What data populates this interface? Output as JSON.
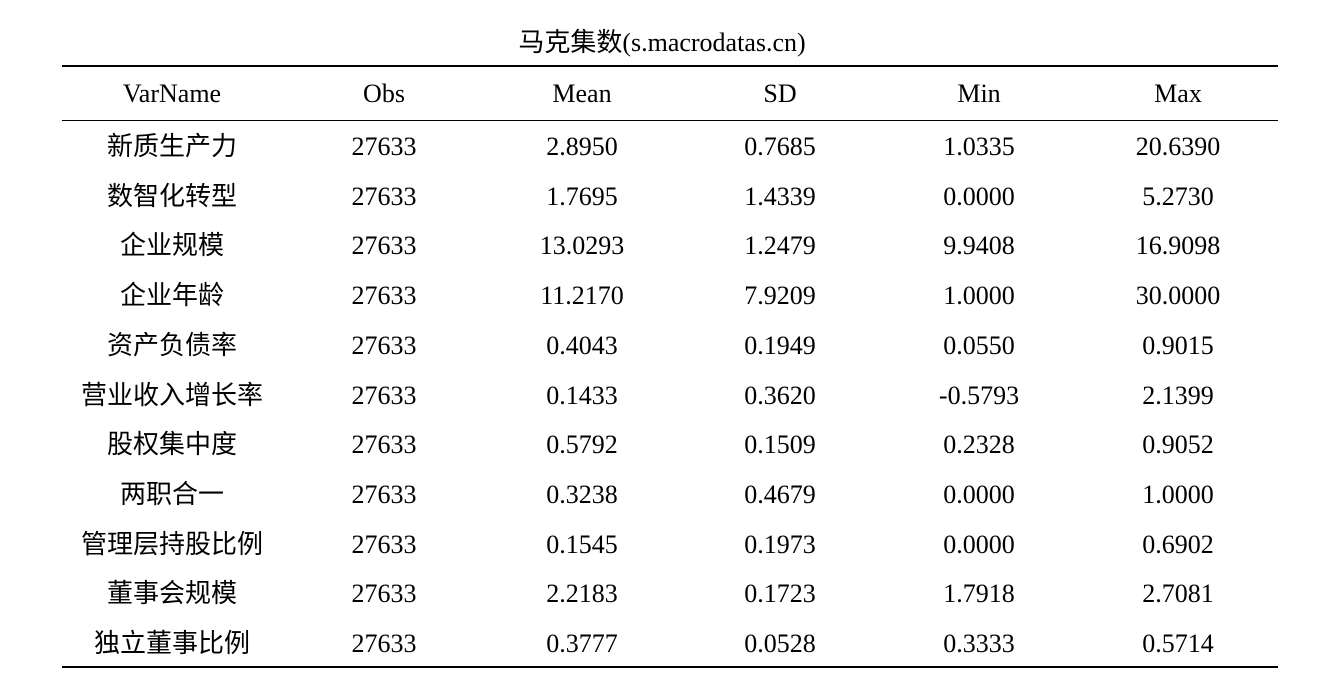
{
  "table": {
    "title": "马克集数(s.macrodatas.cn)",
    "header": [
      "VarName",
      "Obs",
      "Mean",
      "SD",
      "Min",
      "Max"
    ],
    "rows": [
      [
        "新质生产力",
        "27633",
        "2.8950",
        "0.7685",
        "1.0335",
        "20.6390"
      ],
      [
        "数智化转型",
        "27633",
        "1.7695",
        "1.4339",
        "0.0000",
        "5.2730"
      ],
      [
        "企业规模",
        "27633",
        "13.0293",
        "1.2479",
        "9.9408",
        "16.9098"
      ],
      [
        "企业年龄",
        "27633",
        "11.2170",
        "7.9209",
        "1.0000",
        "30.0000"
      ],
      [
        "资产负债率",
        "27633",
        "0.4043",
        "0.1949",
        "0.0550",
        "0.9015"
      ],
      [
        "营业收入增长率",
        "27633",
        "0.1433",
        "0.3620",
        "-0.5793",
        "2.1399"
      ],
      [
        "股权集中度",
        "27633",
        "0.5792",
        "0.1509",
        "0.2328",
        "0.9052"
      ],
      [
        "两职合一",
        "27633",
        "0.3238",
        "0.4679",
        "0.0000",
        "1.0000"
      ],
      [
        "管理层持股比例",
        "27633",
        "0.1545",
        "0.1973",
        "0.0000",
        "0.6902"
      ],
      [
        "董事会规模",
        "27633",
        "2.2183",
        "0.1723",
        "1.7918",
        "2.7081"
      ],
      [
        "独立董事比例",
        "27633",
        "0.3777",
        "0.0528",
        "0.3333",
        "0.5714"
      ]
    ]
  }
}
